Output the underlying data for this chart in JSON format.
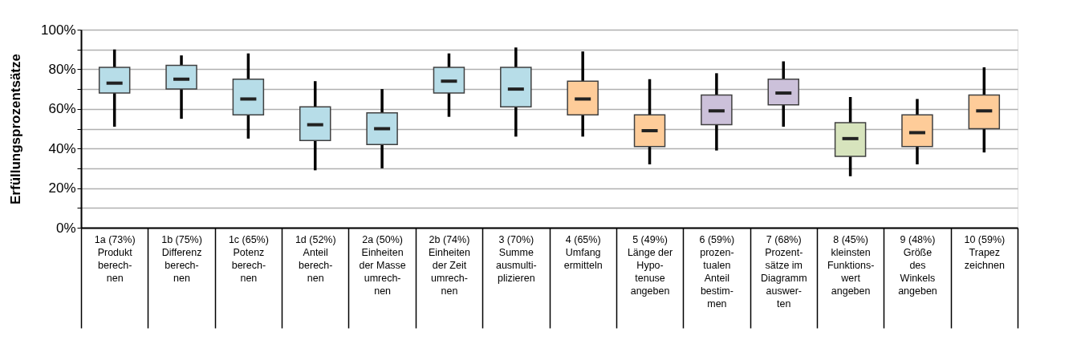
{
  "chart_data": {
    "type": "box",
    "ylabel": "Erfüllungsprozentsätze",
    "categories": [
      "1a (73%)\n\nProdukt\nberech-\nnen",
      "1b (75%)\n\nDifferenz\nberech-\nnen",
      "1c (65%)\n\nPotenz\nberech-\nnen",
      "1d (52%)\n\nAnteil\nberech-\nnen",
      "2a (50%)\n\nEinheiten\nder Masse\numrech-\nnen",
      "2b (74%)\n\nEinheiten\nder Zeit\numrech-\nnen",
      "3 (70%)\n\nSumme\nausmulti-\nplizieren",
      "4 (65%)\n\nUmfang\nermitteln",
      "5 (49%)\n\nLänge der\nHypo-\ntenuse\nangeben",
      "6 (59%)\n\nprozen-\ntualen\nAnteil\nbestim-\nmen",
      "7 (68%)\n\nProzent-\nsätze im\nDiagramm\nauswer-\nten",
      "8 (45%)\n\nkleinsten\nFunktions-\nwert\nangeben",
      "9 (48%)\n\nGröße\ndes\nWinkels\nangeben",
      "10 (59%)\n\nTrapez\nzeichnen"
    ],
    "boxes": [
      {
        "low": 51,
        "q1": 68,
        "median": 73,
        "q3": 81,
        "high": 90
      },
      {
        "low": 55,
        "q1": 70,
        "median": 75,
        "q3": 82,
        "high": 87
      },
      {
        "low": 45,
        "q1": 57,
        "median": 65,
        "q3": 75,
        "high": 88
      },
      {
        "low": 29,
        "q1": 44,
        "median": 52,
        "q3": 61,
        "high": 74
      },
      {
        "low": 30,
        "q1": 42,
        "median": 50,
        "q3": 58,
        "high": 70
      },
      {
        "low": 56,
        "q1": 68,
        "median": 74,
        "q3": 81,
        "high": 88
      },
      {
        "low": 46,
        "q1": 61,
        "median": 70,
        "q3": 81,
        "high": 91
      },
      {
        "low": 46,
        "q1": 57,
        "median": 65,
        "q3": 74,
        "high": 89
      },
      {
        "low": 32,
        "q1": 41,
        "median": 49,
        "q3": 57,
        "high": 75
      },
      {
        "low": 39,
        "q1": 52,
        "median": 59,
        "q3": 67,
        "high": 78
      },
      {
        "low": 51,
        "q1": 62,
        "median": 68,
        "q3": 75,
        "high": 84
      },
      {
        "low": 26,
        "q1": 36,
        "median": 45,
        "q3": 53,
        "high": 66
      },
      {
        "low": 32,
        "q1": 41,
        "median": 48,
        "q3": 57,
        "high": 65
      },
      {
        "low": 38,
        "q1": 50,
        "median": 59,
        "q3": 67,
        "high": 81
      }
    ],
    "colors": [
      "#b7dde8",
      "#b7dde8",
      "#b7dde8",
      "#b7dde8",
      "#b7dde8",
      "#b7dde8",
      "#b7dde8",
      "#fecc99",
      "#fecc99",
      "#ccc1da",
      "#ccc1da",
      "#d7e4bd",
      "#fecc99",
      "#fecc99"
    ],
    "ylim": [
      0,
      100
    ],
    "yticks": [
      {
        "value": 0,
        "label": "0%"
      },
      {
        "value": 10,
        "label": null
      },
      {
        "value": 20,
        "label": "20%"
      },
      {
        "value": 30,
        "label": null
      },
      {
        "value": 40,
        "label": "40%"
      },
      {
        "value": 50,
        "label": null
      },
      {
        "value": 60,
        "label": "60%"
      },
      {
        "value": 70,
        "label": null
      },
      {
        "value": 80,
        "label": "80%"
      },
      {
        "value": 90,
        "label": null
      },
      {
        "value": 100,
        "label": "100%"
      }
    ],
    "grid": "y"
  }
}
